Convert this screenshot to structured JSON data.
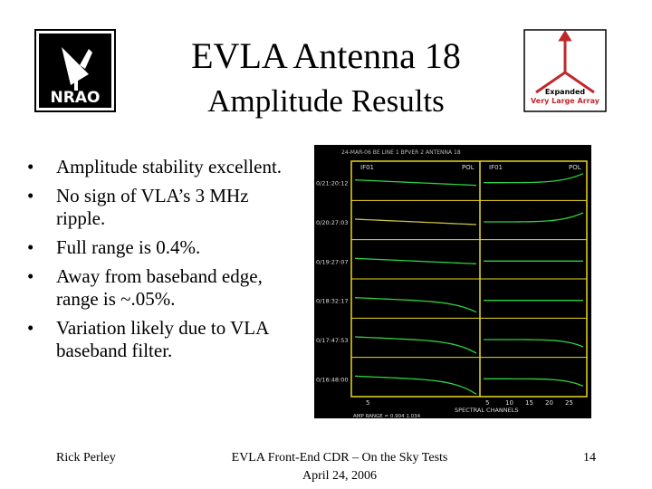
{
  "header": {
    "title": "EVLA Antenna 18",
    "subtitle": "Amplitude Results"
  },
  "logos": {
    "left": "NRAO",
    "right": [
      "Expanded",
      "Very Large Array"
    ]
  },
  "bullets": [
    "Amplitude stability excellent.",
    "No sign of VLA’s 3 MHz ripple.",
    "Full range is 0.4%.",
    "Away from baseband edge, range is ~.05%.",
    "Variation likely due to VLA baseband filter."
  ],
  "figure": {
    "header": "24-MAR-06 BE LINE 1 BPVER 2 ANTENNA 18",
    "panels": [
      {
        "if": "IF01",
        "pol": "POL"
      },
      {
        "if": "IF01",
        "pol": "POL"
      }
    ],
    "row_labels": [
      "0/21:20:12",
      "0/20:27:03",
      "0/19:27:07",
      "0/18:32:17",
      "0/17:47:53",
      "0/16:48:00"
    ],
    "x_ticks_left": [
      "5"
    ],
    "x_ticks_right": [
      "5",
      "10",
      "15",
      "20",
      "25"
    ],
    "x_label": "SPECTRAL CHANNELS",
    "note": "AMP RANGE = 0.904 1.034"
  },
  "footer": {
    "author": "Rick Perley",
    "event": "EVLA Front-End CDR – On the Sky Tests",
    "date": "April 24, 2006",
    "page": "14"
  }
}
